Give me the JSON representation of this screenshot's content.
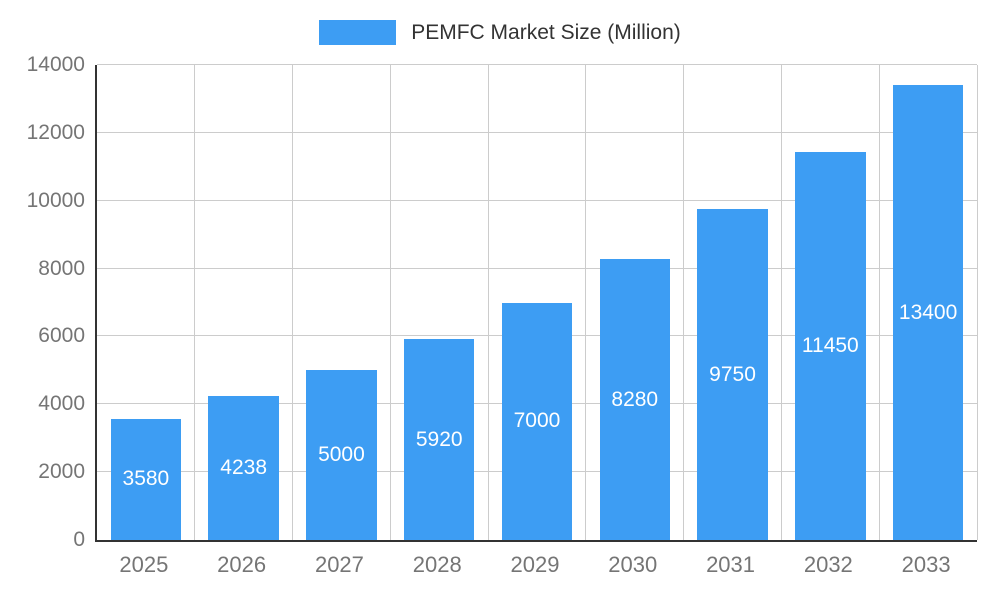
{
  "chart_data": {
    "type": "bar",
    "title": "PEMFC Market Size (Million)",
    "legend": "PEMFC Market Size (Million)",
    "legend_position": "top",
    "categories": [
      "2025",
      "2026",
      "2027",
      "2028",
      "2029",
      "2030",
      "2031",
      "2032",
      "2033"
    ],
    "values": [
      3580,
      4238,
      5000,
      5920,
      7000,
      8280,
      9750,
      11450,
      13400
    ],
    "xlabel": "",
    "ylabel": "",
    "ylim": [
      0,
      14000
    ],
    "ytick_interval": 2000,
    "grid": true,
    "colors": {
      "bar": "#3D9DF3",
      "grid": "#CCCCCC",
      "axis": "#333333",
      "tick_label": "#757575",
      "legend_text": "#333333",
      "value_label": "#FFFFFF",
      "background": "#FFFFFF"
    }
  }
}
